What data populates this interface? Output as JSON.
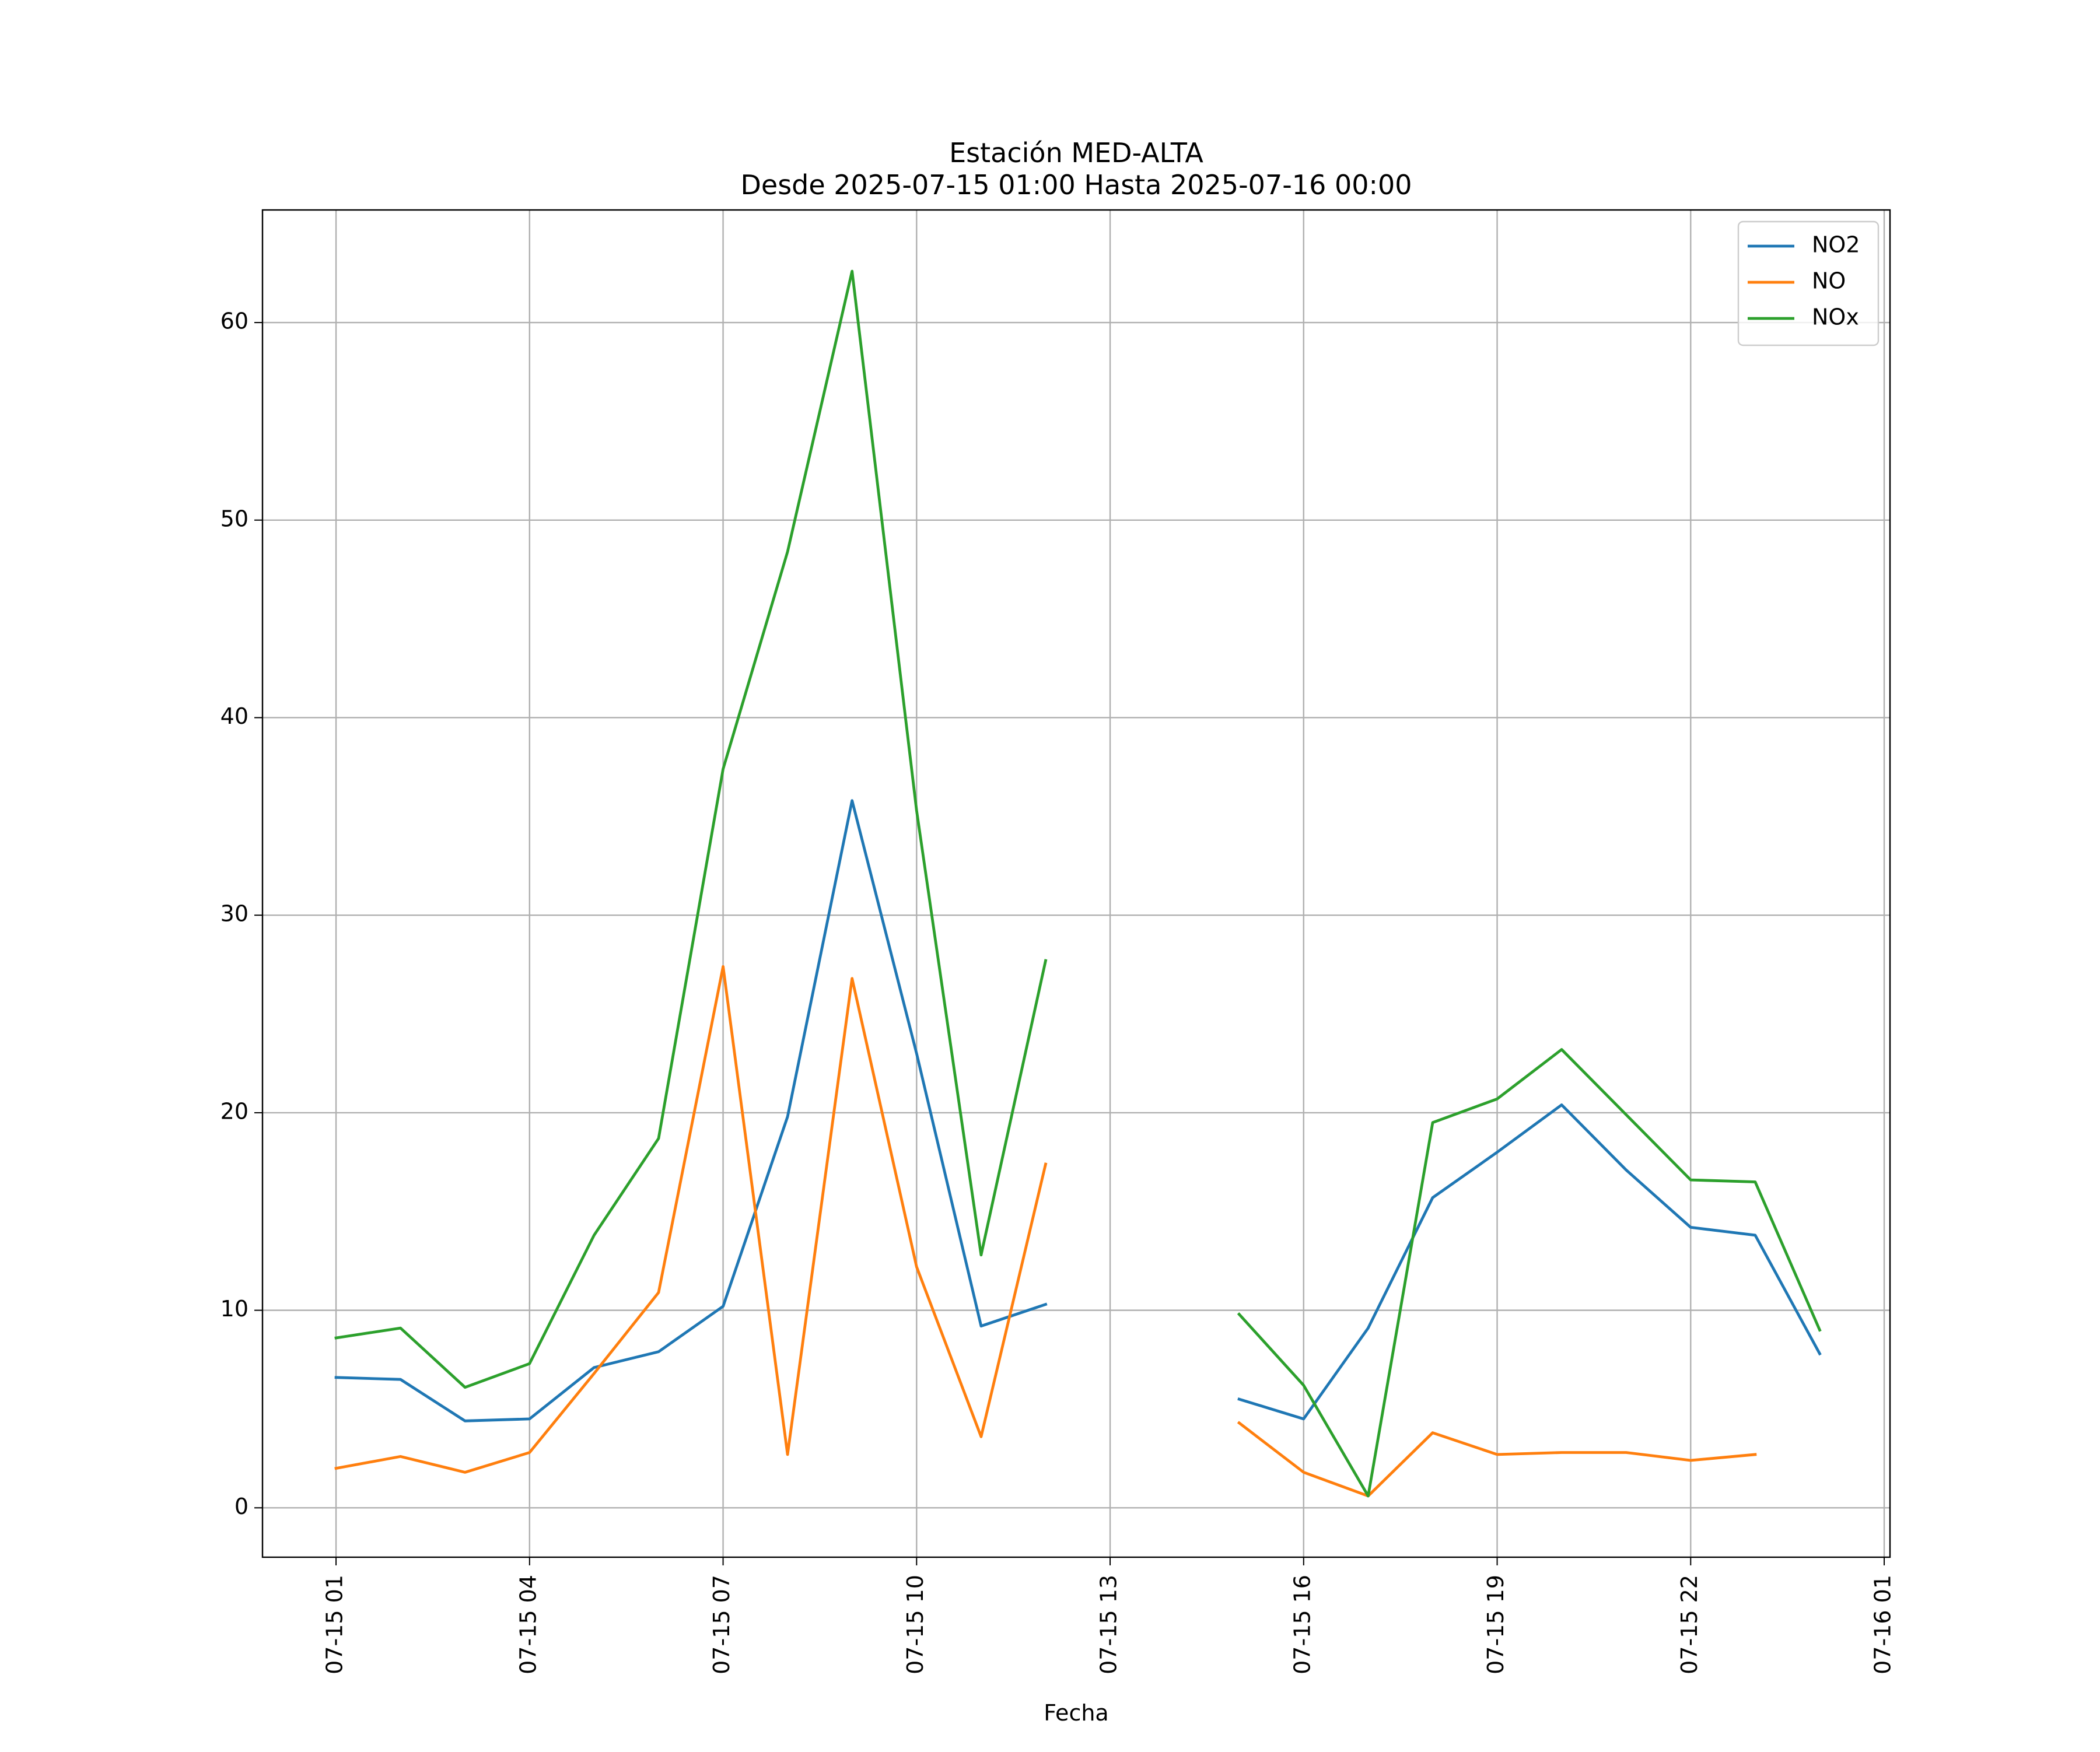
{
  "chart_data": {
    "type": "line",
    "title": "Estación MED-ALTA",
    "subtitle": "Desde 2025-07-15 01:00 Hasta 2025-07-16 00:00",
    "xlabel": "Fecha",
    "ylabel": "",
    "x": [
      "07-15 01",
      "07-15 02",
      "07-15 03",
      "07-15 04",
      "07-15 05",
      "07-15 06",
      "07-15 07",
      "07-15 08",
      "07-15 09",
      "07-15 10",
      "07-15 11",
      "07-15 12",
      "07-15 13",
      "07-15 14",
      "07-15 15",
      "07-15 16",
      "07-15 17",
      "07-15 18",
      "07-15 19",
      "07-15 20",
      "07-15 21",
      "07-15 22",
      "07-15 23",
      "07-16 00"
    ],
    "x_hours": [
      1,
      2,
      3,
      4,
      5,
      6,
      7,
      8,
      9,
      10,
      11,
      12,
      13,
      14,
      15,
      16,
      17,
      18,
      19,
      20,
      21,
      22,
      23,
      24
    ],
    "x_ticks": [
      "07-15 01",
      "07-15 04",
      "07-15 07",
      "07-15 10",
      "07-15 13",
      "07-15 16",
      "07-15 19",
      "07-15 22",
      "07-16 01"
    ],
    "x_tick_hours": [
      1,
      4,
      7,
      10,
      13,
      16,
      19,
      22,
      25
    ],
    "xlim_hours": [
      -0.14,
      25.09
    ],
    "y_ticks": [
      "0",
      "10",
      "20",
      "30",
      "40",
      "50",
      "60"
    ],
    "y_tick_values": [
      0,
      10,
      20,
      30,
      40,
      50,
      60
    ],
    "ylim": [
      -2.5,
      65.7
    ],
    "grid": true,
    "legend_position": "top-right",
    "series": [
      {
        "name": "NO2",
        "color": "#1f77b4",
        "values": [
          6.6,
          6.5,
          4.4,
          4.5,
          7.1,
          7.9,
          10.2,
          19.8,
          35.8,
          23.0,
          9.2,
          10.3,
          null,
          null,
          5.5,
          4.5,
          9.1,
          15.7,
          18.0,
          20.4,
          17.1,
          14.2,
          13.8,
          7.8
        ]
      },
      {
        "name": "NO",
        "color": "#ff7f0e",
        "values": [
          2.0,
          2.6,
          1.8,
          2.8,
          6.8,
          10.9,
          27.4,
          2.7,
          26.8,
          12.2,
          3.6,
          17.4,
          null,
          null,
          4.3,
          1.8,
          0.6,
          3.8,
          2.7,
          2.8,
          2.8,
          2.4,
          2.7,
          null
        ]
      },
      {
        "name": "NOx",
        "color": "#2ca02c",
        "values": [
          8.6,
          9.1,
          6.1,
          7.3,
          13.8,
          18.7,
          37.4,
          48.4,
          62.6,
          35.3,
          12.8,
          27.7,
          null,
          null,
          9.8,
          6.2,
          0.6,
          19.5,
          20.7,
          23.2,
          19.9,
          16.6,
          16.5,
          9.0
        ]
      }
    ]
  }
}
